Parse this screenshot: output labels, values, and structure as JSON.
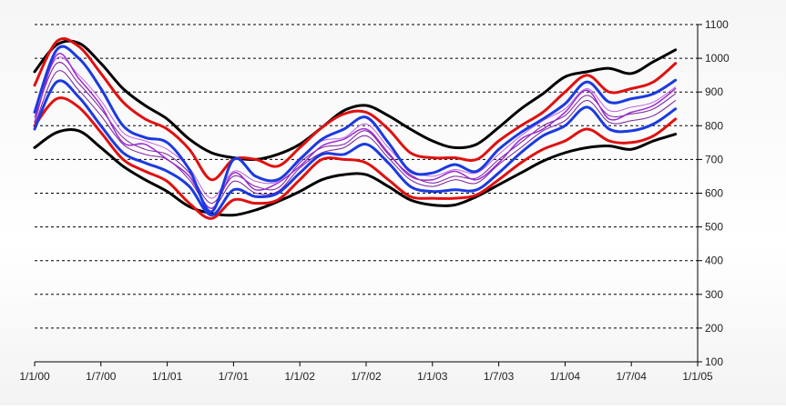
{
  "chart_data": {
    "type": "line",
    "title": "",
    "xlabel": "",
    "ylabel": "",
    "ylim": [
      100,
      1100
    ],
    "y_ticks": [
      "100",
      "200",
      "300",
      "400",
      "500",
      "600",
      "700",
      "800",
      "900",
      "1000",
      "1100"
    ],
    "x_tick_labels": [
      "1/1/00",
      "1/7/00",
      "1/1/01",
      "1/7/01",
      "1/1/02",
      "1/7/02",
      "1/1/03",
      "1/7/03",
      "1/1/04",
      "1/7/04",
      "1/1/05"
    ],
    "x_range": [
      0,
      60
    ],
    "grid": "horizontal dashed",
    "legend": "none",
    "series": [
      {
        "color": "#000000",
        "width": 3,
        "x": [
          0,
          2,
          4,
          6,
          8,
          10,
          12,
          14,
          16,
          18,
          20,
          22,
          24,
          26,
          28,
          30,
          32,
          34,
          36,
          38,
          40,
          42,
          44,
          46,
          48,
          50,
          52,
          54,
          56,
          58
        ],
        "values": [
          960,
          1040,
          1045,
          985,
          910,
          860,
          820,
          760,
          720,
          705,
          700,
          715,
          745,
          795,
          845,
          860,
          830,
          790,
          755,
          735,
          745,
          795,
          850,
          895,
          945,
          960,
          970,
          955,
          990,
          1025
        ]
      },
      {
        "color": "#000000",
        "width": 3,
        "x": [
          0,
          2,
          4,
          6,
          8,
          10,
          12,
          14,
          16,
          18,
          20,
          22,
          24,
          26,
          28,
          30,
          32,
          34,
          36,
          38,
          40,
          42,
          44,
          46,
          48,
          50,
          52,
          54,
          56,
          58
        ],
        "values": [
          735,
          780,
          785,
          735,
          680,
          640,
          605,
          560,
          540,
          535,
          550,
          575,
          605,
          640,
          655,
          655,
          620,
          580,
          565,
          565,
          590,
          625,
          660,
          695,
          720,
          735,
          740,
          730,
          755,
          775
        ]
      },
      {
        "color": "#e01010",
        "width": 3,
        "x": [
          0,
          2,
          4,
          6,
          8,
          10,
          12,
          14,
          16,
          18,
          20,
          22,
          24,
          26,
          28,
          30,
          32,
          34,
          36,
          38,
          40,
          42,
          44,
          46,
          48,
          50,
          52,
          54,
          56,
          58
        ],
        "values": [
          920,
          1050,
          1035,
          955,
          870,
          820,
          790,
          730,
          640,
          700,
          700,
          680,
          735,
          795,
          835,
          840,
          790,
          720,
          705,
          705,
          700,
          755,
          800,
          840,
          900,
          950,
          900,
          910,
          930,
          985
        ]
      },
      {
        "color": "#e01010",
        "width": 3,
        "x": [
          0,
          2,
          4,
          6,
          8,
          10,
          12,
          14,
          16,
          18,
          20,
          22,
          24,
          26,
          28,
          30,
          32,
          34,
          36,
          38,
          40,
          42,
          44,
          46,
          48,
          50,
          52,
          54,
          56,
          58
        ],
        "values": [
          800,
          880,
          855,
          780,
          700,
          665,
          635,
          570,
          525,
          580,
          570,
          580,
          640,
          700,
          700,
          690,
          640,
          590,
          585,
          585,
          595,
          640,
          690,
          730,
          755,
          790,
          755,
          750,
          770,
          820
        ]
      },
      {
        "color": "#1b3ae0",
        "width": 3,
        "x": [
          0,
          2,
          4,
          6,
          8,
          10,
          12,
          14,
          16,
          18,
          20,
          22,
          24,
          26,
          28,
          30,
          32,
          34,
          36,
          38,
          40,
          42,
          44,
          46,
          48,
          50,
          52,
          54,
          56,
          58
        ],
        "values": [
          840,
          1025,
          1000,
          910,
          800,
          765,
          750,
          670,
          545,
          700,
          650,
          640,
          700,
          760,
          790,
          825,
          750,
          665,
          660,
          685,
          665,
          730,
          780,
          820,
          865,
          930,
          870,
          880,
          895,
          935
        ]
      },
      {
        "color": "#1b3ae0",
        "width": 3,
        "x": [
          0,
          2,
          4,
          6,
          8,
          10,
          12,
          14,
          16,
          18,
          20,
          22,
          24,
          26,
          28,
          30,
          32,
          34,
          36,
          38,
          40,
          42,
          44,
          46,
          48,
          50,
          52,
          54,
          56,
          58
        ],
        "values": [
          790,
          930,
          885,
          800,
          720,
          690,
          665,
          620,
          535,
          610,
          590,
          600,
          660,
          715,
          715,
          745,
          690,
          620,
          605,
          610,
          610,
          660,
          720,
          770,
          800,
          855,
          790,
          785,
          805,
          850
        ]
      },
      {
        "color": "#9a2bd0",
        "width": 1.5,
        "x": [
          0,
          2,
          4,
          6,
          8,
          10,
          12,
          14,
          16,
          18,
          20,
          22,
          24,
          26,
          28,
          30,
          32,
          34,
          36,
          38,
          40,
          42,
          44,
          46,
          48,
          50,
          52,
          54,
          56,
          58
        ],
        "values": [
          810,
          1010,
          940,
          860,
          750,
          745,
          700,
          650,
          555,
          660,
          610,
          630,
          680,
          740,
          760,
          790,
          720,
          650,
          640,
          665,
          640,
          690,
          760,
          790,
          840,
          905,
          820,
          840,
          860,
          910
        ]
      },
      {
        "color": "#7a1f9e",
        "width": 1,
        "x": [
          0,
          2,
          4,
          6,
          8,
          10,
          12,
          14,
          16,
          18,
          20,
          22,
          24,
          26,
          28,
          30,
          32,
          34,
          36,
          38,
          40,
          42,
          44,
          46,
          48,
          50,
          52,
          54,
          56,
          58
        ],
        "values": [
          825,
          985,
          925,
          850,
          765,
          730,
          715,
          660,
          570,
          650,
          620,
          615,
          690,
          735,
          745,
          785,
          715,
          655,
          630,
          650,
          645,
          700,
          750,
          800,
          830,
          890,
          830,
          835,
          850,
          895
        ]
      },
      {
        "color": "#7a1f9e",
        "width": 1,
        "x": [
          0,
          2,
          4,
          6,
          8,
          10,
          12,
          14,
          16,
          18,
          20,
          22,
          24,
          26,
          28,
          30,
          32,
          34,
          36,
          38,
          40,
          42,
          44,
          46,
          48,
          50,
          52,
          54,
          56,
          58
        ],
        "values": [
          800,
          960,
          905,
          830,
          745,
          715,
          700,
          640,
          555,
          635,
          600,
          605,
          675,
          720,
          735,
          770,
          705,
          640,
          620,
          640,
          630,
          685,
          735,
          785,
          815,
          875,
          810,
          815,
          830,
          875
        ]
      },
      {
        "color": "#c060e0",
        "width": 1,
        "x": [
          0,
          2,
          4,
          6,
          8,
          10,
          12,
          14,
          16,
          18,
          20,
          22,
          24,
          26,
          28,
          30,
          32,
          34,
          36,
          38,
          40,
          42,
          44,
          46,
          48,
          50,
          52,
          54,
          56,
          58
        ],
        "values": [
          850,
          1000,
          950,
          875,
          780,
          755,
          730,
          675,
          585,
          665,
          635,
          635,
          705,
          755,
          765,
          805,
          735,
          670,
          650,
          670,
          660,
          715,
          770,
          815,
          850,
          910,
          845,
          855,
          870,
          915
        ]
      }
    ]
  }
}
